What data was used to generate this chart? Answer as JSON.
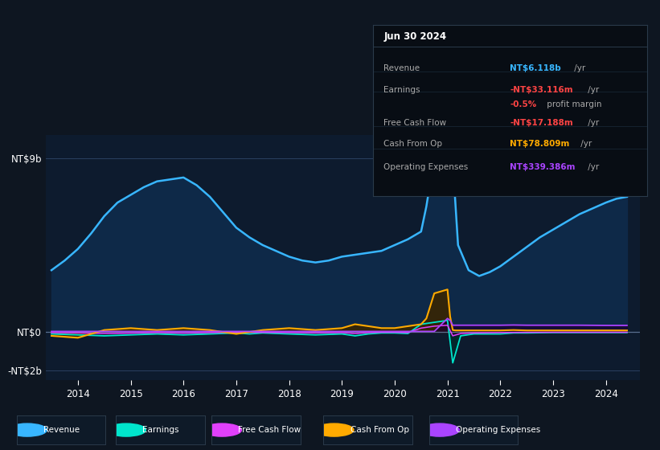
{
  "bg_color": "#0e1621",
  "plot_bg_color": "#0d1b2e",
  "tooltip_bg": "#080d14",
  "legend_bg": "#0e1621",
  "x_ticks": [
    2014,
    2015,
    2016,
    2017,
    2018,
    2019,
    2020,
    2021,
    2022,
    2023,
    2024
  ],
  "y_ticks": [
    9000000000,
    0,
    -2000000000
  ],
  "y_labels": [
    "NT$9b",
    "NT$0",
    "-NT$2b"
  ],
  "legend": [
    {
      "label": "Revenue",
      "color": "#38b6ff"
    },
    {
      "label": "Earnings",
      "color": "#00e5cc"
    },
    {
      "label": "Free Cash Flow",
      "color": "#e040fb"
    },
    {
      "label": "Cash From Op",
      "color": "#ffaa00"
    },
    {
      "label": "Operating Expenses",
      "color": "#aa44ff"
    }
  ],
  "revenue": {
    "x": [
      2013.5,
      2013.75,
      2014.0,
      2014.25,
      2014.5,
      2014.75,
      2015.0,
      2015.25,
      2015.5,
      2015.75,
      2016.0,
      2016.25,
      2016.5,
      2016.75,
      2017.0,
      2017.25,
      2017.5,
      2017.75,
      2018.0,
      2018.25,
      2018.5,
      2018.75,
      2019.0,
      2019.25,
      2019.5,
      2019.75,
      2020.0,
      2020.25,
      2020.5,
      2020.6,
      2020.7,
      2020.85,
      2021.0,
      2021.1,
      2021.2,
      2021.4,
      2021.6,
      2021.8,
      2022.0,
      2022.25,
      2022.5,
      2022.75,
      2023.0,
      2023.25,
      2023.5,
      2023.75,
      2024.0,
      2024.2,
      2024.4
    ],
    "y": [
      3200000000,
      3700000000,
      4300000000,
      5100000000,
      6000000000,
      6700000000,
      7100000000,
      7500000000,
      7800000000,
      7900000000,
      8000000000,
      7600000000,
      7000000000,
      6200000000,
      5400000000,
      4900000000,
      4500000000,
      4200000000,
      3900000000,
      3700000000,
      3600000000,
      3700000000,
      3900000000,
      4000000000,
      4100000000,
      4200000000,
      4500000000,
      4800000000,
      5200000000,
      6500000000,
      8200000000,
      8700000000,
      9000000000,
      8800000000,
      4500000000,
      3200000000,
      2900000000,
      3100000000,
      3400000000,
      3900000000,
      4400000000,
      4900000000,
      5300000000,
      5700000000,
      6100000000,
      6400000000,
      6700000000,
      6900000000,
      7000000000
    ],
    "color": "#38b6ff",
    "fill_color": "#0f2a4a"
  },
  "earnings": {
    "x": [
      2013.5,
      2014.0,
      2014.5,
      2015.0,
      2015.5,
      2016.0,
      2016.5,
      2017.0,
      2017.25,
      2017.5,
      2018.0,
      2018.5,
      2019.0,
      2019.25,
      2019.5,
      2019.75,
      2020.0,
      2020.25,
      2020.5,
      2020.75,
      2021.0,
      2021.1,
      2021.25,
      2021.5,
      2022.0,
      2022.25,
      2022.5,
      2023.0,
      2023.5,
      2024.0,
      2024.4
    ],
    "y": [
      -100000000,
      -150000000,
      -200000000,
      -150000000,
      -100000000,
      -150000000,
      -100000000,
      -50000000,
      -100000000,
      -50000000,
      -100000000,
      -150000000,
      -100000000,
      -200000000,
      -100000000,
      -50000000,
      -50000000,
      -80000000,
      400000000,
      500000000,
      600000000,
      -1600000000,
      -200000000,
      -100000000,
      -100000000,
      -50000000,
      -50000000,
      -30000000,
      -30000000,
      -30000000,
      -30000000
    ],
    "color": "#00e5cc",
    "fill_color": "#002a2a"
  },
  "free_cash_flow": {
    "x": [
      2013.5,
      2014.0,
      2014.5,
      2015.0,
      2015.5,
      2016.0,
      2016.5,
      2017.0,
      2017.5,
      2018.0,
      2018.5,
      2019.0,
      2019.25,
      2019.5,
      2019.75,
      2020.0,
      2020.25,
      2020.5,
      2020.75,
      2021.0,
      2021.1,
      2021.25,
      2021.5,
      2022.0,
      2022.5,
      2023.0,
      2023.5,
      2024.0,
      2024.4
    ],
    "y": [
      -30000000,
      -50000000,
      -80000000,
      -60000000,
      -30000000,
      -60000000,
      -30000000,
      -20000000,
      -20000000,
      -30000000,
      -50000000,
      -30000000,
      -80000000,
      -30000000,
      -15000000,
      -15000000,
      -30000000,
      200000000,
      300000000,
      350000000,
      -200000000,
      -80000000,
      -50000000,
      -30000000,
      -20000000,
      -15000000,
      -15000000,
      -15000000,
      -15000000
    ],
    "color": "#e040fb",
    "fill_color": "#280030"
  },
  "cash_from_op": {
    "x": [
      2013.5,
      2014.0,
      2014.5,
      2015.0,
      2015.5,
      2016.0,
      2016.5,
      2017.0,
      2017.5,
      2018.0,
      2018.5,
      2019.0,
      2019.25,
      2019.5,
      2019.75,
      2020.0,
      2020.25,
      2020.5,
      2020.6,
      2020.75,
      2021.0,
      2021.05,
      2021.1,
      2021.15,
      2021.25,
      2021.5,
      2022.0,
      2022.25,
      2022.5,
      2023.0,
      2023.5,
      2024.0,
      2024.4
    ],
    "y": [
      -200000000,
      -300000000,
      100000000,
      200000000,
      100000000,
      200000000,
      100000000,
      -100000000,
      100000000,
      200000000,
      100000000,
      200000000,
      400000000,
      300000000,
      200000000,
      200000000,
      300000000,
      400000000,
      700000000,
      2000000000,
      2200000000,
      800000000,
      100000000,
      80000000,
      80000000,
      80000000,
      80000000,
      100000000,
      80000000,
      80000000,
      80000000,
      80000000,
      80000000
    ],
    "color": "#ffaa00",
    "fill_color": "#3a2500"
  },
  "operating_expenses": {
    "x": [
      2013.5,
      2014.0,
      2014.5,
      2015.0,
      2015.5,
      2016.0,
      2016.5,
      2017.0,
      2017.5,
      2018.0,
      2018.5,
      2019.0,
      2019.5,
      2020.0,
      2020.5,
      2020.75,
      2021.0,
      2021.05,
      2021.1,
      2021.25,
      2021.5,
      2022.0,
      2022.25,
      2022.5,
      2023.0,
      2023.5,
      2024.0,
      2024.4
    ],
    "y": [
      30000000,
      30000000,
      30000000,
      30000000,
      30000000,
      30000000,
      30000000,
      30000000,
      30000000,
      30000000,
      30000000,
      30000000,
      30000000,
      30000000,
      30000000,
      30000000,
      700000000,
      600000000,
      350000000,
      350000000,
      350000000,
      350000000,
      360000000,
      350000000,
      350000000,
      350000000,
      340000000,
      340000000
    ],
    "color": "#aa44ff",
    "fill_color": "#1a0030"
  },
  "tooltip": {
    "date": "Jun 30 2024",
    "rows": [
      {
        "label": "Revenue",
        "value": "NT$6.118b",
        "suffix": " /yr",
        "value_color": "#38b6ff"
      },
      {
        "label": "Earnings",
        "value": "-NT$33.116m",
        "suffix": " /yr",
        "value_color": "#ff4444"
      },
      {
        "label": "",
        "value": "-0.5%",
        "suffix": " profit margin",
        "value_color": "#ff4444"
      },
      {
        "label": "Free Cash Flow",
        "value": "-NT$17.188m",
        "suffix": " /yr",
        "value_color": "#ff4444"
      },
      {
        "label": "Cash From Op",
        "value": "NT$78.809m",
        "suffix": " /yr",
        "value_color": "#ffaa00"
      },
      {
        "label": "Operating Expenses",
        "value": "NT$339.386m",
        "suffix": " /yr",
        "value_color": "#aa44ff"
      }
    ]
  }
}
